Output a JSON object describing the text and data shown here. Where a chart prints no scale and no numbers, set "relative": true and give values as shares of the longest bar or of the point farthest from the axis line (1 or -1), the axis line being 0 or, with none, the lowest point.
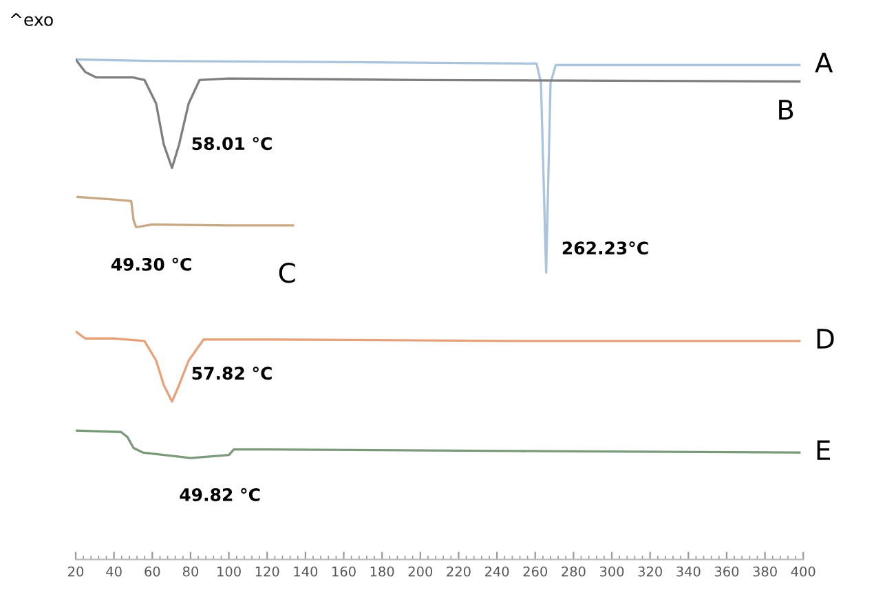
{
  "chart_data": {
    "type": "line",
    "relative": true,
    "xlim": [
      20,
      400
    ],
    "xticks": [
      20,
      40,
      60,
      80,
      100,
      120,
      140,
      160,
      180,
      200,
      220,
      240,
      260,
      280,
      300,
      320,
      340,
      360,
      380,
      400
    ],
    "tick_labels": "x",
    "grid": false,
    "legend": false,
    "marker": "none",
    "line_style": "solid",
    "series": [
      {
        "name": "A",
        "color": "#a9c4dc",
        "x": [
          20,
          60,
          150,
          255,
          260.7,
          263,
          265.7,
          268,
          270.7,
          300,
          398
        ],
        "values": [
          1.0,
          0.997,
          0.995,
          0.992,
          0.992,
          0.953,
          0.574,
          0.953,
          0.989,
          0.989,
          0.989
        ]
      },
      {
        "name": "B",
        "color": "#7f7f7f",
        "x": [
          20,
          25,
          30.8,
          50,
          55.9,
          62,
          66,
          70.3,
          74,
          79,
          84.7,
          100,
          200,
          398
        ],
        "values": [
          1.0,
          0.975,
          0.964,
          0.964,
          0.959,
          0.912,
          0.83,
          0.783,
          0.83,
          0.912,
          0.959,
          0.962,
          0.959,
          0.956
        ]
      },
      {
        "name": "C",
        "color": "#c8a882",
        "x": [
          21,
          40,
          49,
          50.2,
          51.5,
          52.3,
          60,
          100,
          133.5
        ],
        "values": [
          0.725,
          0.72,
          0.717,
          0.679,
          0.665,
          0.665,
          0.67,
          0.668,
          0.668
        ]
      },
      {
        "name": "D",
        "color": "#e6a27a",
        "x": [
          20,
          25,
          40,
          55.9,
          62,
          66,
          70.3,
          74,
          79,
          86.8,
          120,
          250,
          398
        ],
        "values": [
          0.456,
          0.442,
          0.442,
          0.437,
          0.398,
          0.349,
          0.316,
          0.349,
          0.398,
          0.44,
          0.44,
          0.437,
          0.437
        ]
      },
      {
        "name": "E",
        "color": "#7a9a7a",
        "x": [
          20,
          43.7,
          47,
          50.2,
          55,
          80,
          100,
          102.6,
          120,
          250,
          398
        ],
        "values": [
          0.258,
          0.255,
          0.245,
          0.223,
          0.214,
          0.203,
          0.209,
          0.22,
          0.22,
          0.217,
          0.214
        ]
      }
    ],
    "annotations": [
      "^exo",
      {
        "text": "58.01 °C",
        "x": 70.3,
        "y": 0.783
      },
      {
        "text": "262.23°C",
        "x": 265.7,
        "y": 0.574
      },
      {
        "text": "49.30 °C",
        "x": 50.2,
        "y": 0.679
      },
      {
        "text": "57.82 °C",
        "x": 70.3,
        "y": 0.316
      },
      {
        "text": "49.82 °C",
        "x": 80,
        "y": 0.203
      }
    ]
  }
}
